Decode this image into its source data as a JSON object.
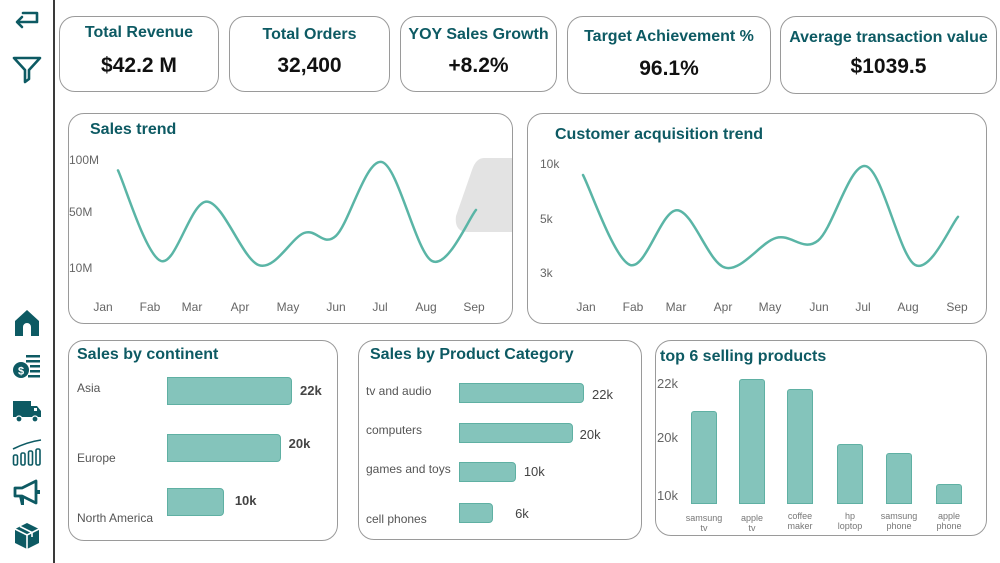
{
  "sidebar": {
    "top_icons": [
      {
        "name": "back-icon",
        "label": "Back"
      },
      {
        "name": "filter-icon",
        "label": "Filter"
      }
    ],
    "nav_icons": [
      {
        "name": "home-icon",
        "label": "Home"
      },
      {
        "name": "finance-icon",
        "label": "Finance"
      },
      {
        "name": "delivery-truck-icon",
        "label": "Delivery"
      },
      {
        "name": "growth-chart-icon",
        "label": "Growth"
      },
      {
        "name": "megaphone-icon",
        "label": "Marketing"
      },
      {
        "name": "product-box-icon",
        "label": "Products"
      }
    ],
    "icon_color": "#0d5a63"
  },
  "kpis": [
    {
      "title": "Total Revenue",
      "value": "$42.2  M"
    },
    {
      "title": "Total  Orders",
      "value": "32,400"
    },
    {
      "title": "YOY Sales Growth",
      "value": "+8.2%"
    },
    {
      "title": "Target Achievement %",
      "value": "96.1%"
    },
    {
      "title": "Average transaction value",
      "value": "$1039.5"
    }
  ],
  "colors": {
    "accent": "#0d5a63",
    "line": "#5ab5a6",
    "bar_fill": "#84c4bb",
    "bar_edge": "#5fb0a3"
  },
  "chart_data": [
    {
      "id": "sales_trend",
      "type": "line",
      "title": "Sales trend",
      "x": [
        "Jan",
        "Fab",
        "Mar",
        "Apr",
        "May",
        "Jun",
        "Jul",
        "Aug",
        "Sep"
      ],
      "ytick_labels": [
        "100M",
        "50M",
        "10M"
      ],
      "ytick_values": [
        100,
        50,
        10
      ],
      "yunit": "M",
      "series": [
        {
          "name": "Sales",
          "values": [
            90,
            15,
            60,
            12,
            35,
            33,
            98,
            15,
            52
          ]
        }
      ],
      "grid": false,
      "legend": "none"
    },
    {
      "id": "customer_acquisition",
      "type": "line",
      "title": "Customer acquisition trend",
      "x": [
        "Jan",
        "Fab",
        "Mar",
        "Apr",
        "May",
        "Jun",
        "Jul",
        "Aug",
        "Sep"
      ],
      "ytick_labels": [
        "10k",
        "5k",
        "3k"
      ],
      "ytick_values": [
        10,
        5,
        3
      ],
      "yunit": "k",
      "series": [
        {
          "name": "Customers",
          "values": [
            9.0,
            3.3,
            5.8,
            3.2,
            4.3,
            4.2,
            9.8,
            3.3,
            5.2
          ]
        }
      ],
      "grid": false,
      "legend": "none"
    },
    {
      "id": "sales_by_continent",
      "type": "bar",
      "orientation": "horizontal",
      "title": "Sales by continent",
      "categories": [
        "Asia",
        "Europe",
        "North America"
      ],
      "values": [
        22,
        20,
        10
      ],
      "value_labels": [
        "22k",
        "20k",
        "10k"
      ],
      "unit": "k"
    },
    {
      "id": "sales_by_category",
      "type": "bar",
      "orientation": "horizontal",
      "title": "Sales by Product Category",
      "categories": [
        "tv and audio",
        "computers",
        "games and toys",
        "cell phones"
      ],
      "values": [
        22,
        20,
        10,
        6
      ],
      "value_labels": [
        "22k",
        "20k",
        "10k",
        "6k"
      ],
      "unit": "k"
    },
    {
      "id": "top_products",
      "type": "bar",
      "orientation": "vertical",
      "title": "top 6 selling products",
      "categories": [
        "samsung\ntv",
        "apple\ntv",
        "coffee\nmaker",
        "hp\nloptop",
        "samsung\nphone",
        "apple\nphone"
      ],
      "values": [
        21,
        22.2,
        21.8,
        19,
        17.5,
        12
      ],
      "ytick_labels": [
        "22k",
        "20k",
        "10k"
      ],
      "ytick_values": [
        22,
        20,
        10
      ],
      "unit": "k"
    }
  ]
}
